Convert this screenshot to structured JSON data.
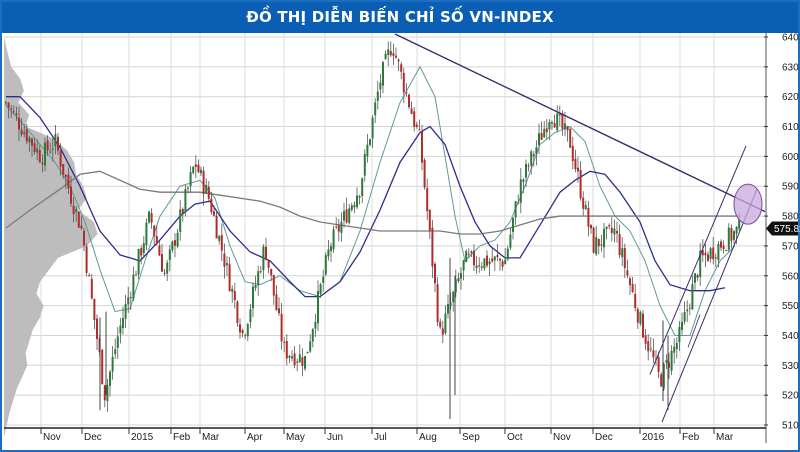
{
  "chart_data": {
    "type": "candlestick",
    "title": "ĐỒ THỊ DIỄN BIẾN CHỈ SỐ VN-INDEX",
    "xlabel": "",
    "ylabel": "",
    "ylim": [
      505,
      643
    ],
    "grid": true,
    "y_ticks": [
      640,
      630,
      620,
      610,
      600,
      590,
      580,
      570,
      560,
      550,
      540,
      530,
      520,
      510
    ],
    "x_ticks": [
      "Nov",
      "Dec",
      "2015",
      "Feb",
      "Mar",
      "Apr",
      "May",
      "Jun",
      "Jul",
      "Aug",
      "Sep",
      "Oct",
      "Nov",
      "Dec",
      "2016",
      "Feb",
      "Mar"
    ],
    "last_value": "575.82",
    "approx_close_path": [
      {
        "t": "Oct-2014",
        "v": 618
      },
      {
        "t": "early-Nov-2014",
        "v": 600
      },
      {
        "t": "mid-Nov-2014",
        "v": 605
      },
      {
        "t": "late-Nov-2014",
        "v": 590
      },
      {
        "t": "early-Dec-2014",
        "v": 575
      },
      {
        "t": "mid-Dec-2014",
        "v": 520
      },
      {
        "t": "late-Dec-2014",
        "v": 540
      },
      {
        "t": "mid-Jan-2015",
        "v": 580
      },
      {
        "t": "late-Jan-2015",
        "v": 560
      },
      {
        "t": "mid-Feb-2015",
        "v": 598
      },
      {
        "t": "early-Mar-2015",
        "v": 585
      },
      {
        "t": "late-Mar-2015",
        "v": 540
      },
      {
        "t": "mid-Apr-2015",
        "v": 570
      },
      {
        "t": "early-May-2015",
        "v": 535
      },
      {
        "t": "mid-May-2015",
        "v": 532
      },
      {
        "t": "early-Jun-2015",
        "v": 570
      },
      {
        "t": "late-Jun-2015",
        "v": 590
      },
      {
        "t": "early-Jul-2015",
        "v": 625
      },
      {
        "t": "mid-Jul-2015",
        "v": 638
      },
      {
        "t": "early-Aug-2015",
        "v": 605
      },
      {
        "t": "late-Aug-2015",
        "v": 540
      },
      {
        "t": "mid-Sep-2015",
        "v": 565
      },
      {
        "t": "early-Oct-2015",
        "v": 565
      },
      {
        "t": "mid-Oct-2015",
        "v": 590
      },
      {
        "t": "early-Nov-2015",
        "v": 615
      },
      {
        "t": "late-Nov-2015",
        "v": 605
      },
      {
        "t": "early-Dec-2015",
        "v": 570
      },
      {
        "t": "mid-Dec-2015",
        "v": 575
      },
      {
        "t": "early-Jan-2016",
        "v": 545
      },
      {
        "t": "mid-Jan-2016",
        "v": 525
      },
      {
        "t": "early-Feb-2016",
        "v": 540
      },
      {
        "t": "late-Feb-2016",
        "v": 565
      },
      {
        "t": "mid-Mar-2016",
        "v": 575.82
      }
    ],
    "series": [
      {
        "name": "Price (candlesticks)",
        "color_up": "#2a7a3a",
        "color_down": "#b22b2b"
      },
      {
        "name": "Short MA",
        "color": "#5f9a96"
      },
      {
        "name": "Medium MA",
        "color": "#2e2e8a"
      },
      {
        "name": "Long MA",
        "color": "#7a7a7a"
      }
    ],
    "annotations": [
      {
        "type": "downtrend-line",
        "from": {
          "t": "mid-Jul-2015",
          "v": 641
        },
        "to": {
          "t": "end-Mar-2016",
          "v": 582
        },
        "color": "#3b2b6b"
      },
      {
        "type": "uptrend-channel",
        "lines": 2,
        "from_v": [
          527,
          512
        ],
        "to_v": [
          603,
          570
        ],
        "color": "#3b2b6b"
      },
      {
        "type": "ellipse-highlight",
        "center_v": 584,
        "color": "#c9a8dc"
      },
      {
        "type": "volume-profile",
        "side": "left",
        "color": "#bdbdbd"
      }
    ]
  },
  "header": {
    "title": "ĐỒ THỊ DIỄN BIẾN CHỈ SỐ VN-INDEX"
  },
  "axis": {
    "y": [
      "640",
      "630",
      "620",
      "610",
      "600",
      "590",
      "580",
      "570",
      "560",
      "550",
      "540",
      "530",
      "520",
      "510"
    ],
    "x": [
      "Nov",
      "Dec",
      "2015",
      "Feb",
      "Mar",
      "Apr",
      "May",
      "Jun",
      "Jul",
      "Aug",
      "Sep",
      "Oct",
      "Nov",
      "Dec",
      "2016",
      "Feb",
      "Mar"
    ],
    "last_value": "575.82"
  },
  "colors": {
    "title_bg": "#0a5fb4",
    "border": "#1a6fc0",
    "up": "#2a7a3a",
    "down": "#b22b2b",
    "trend": "#3b2b6b",
    "ma_short": "#5f9a96",
    "ma_mid": "#2e2e8a",
    "ma_long": "#7a7a7a",
    "profile": "#bdbdbd",
    "highlight": "#c9a8dc"
  }
}
